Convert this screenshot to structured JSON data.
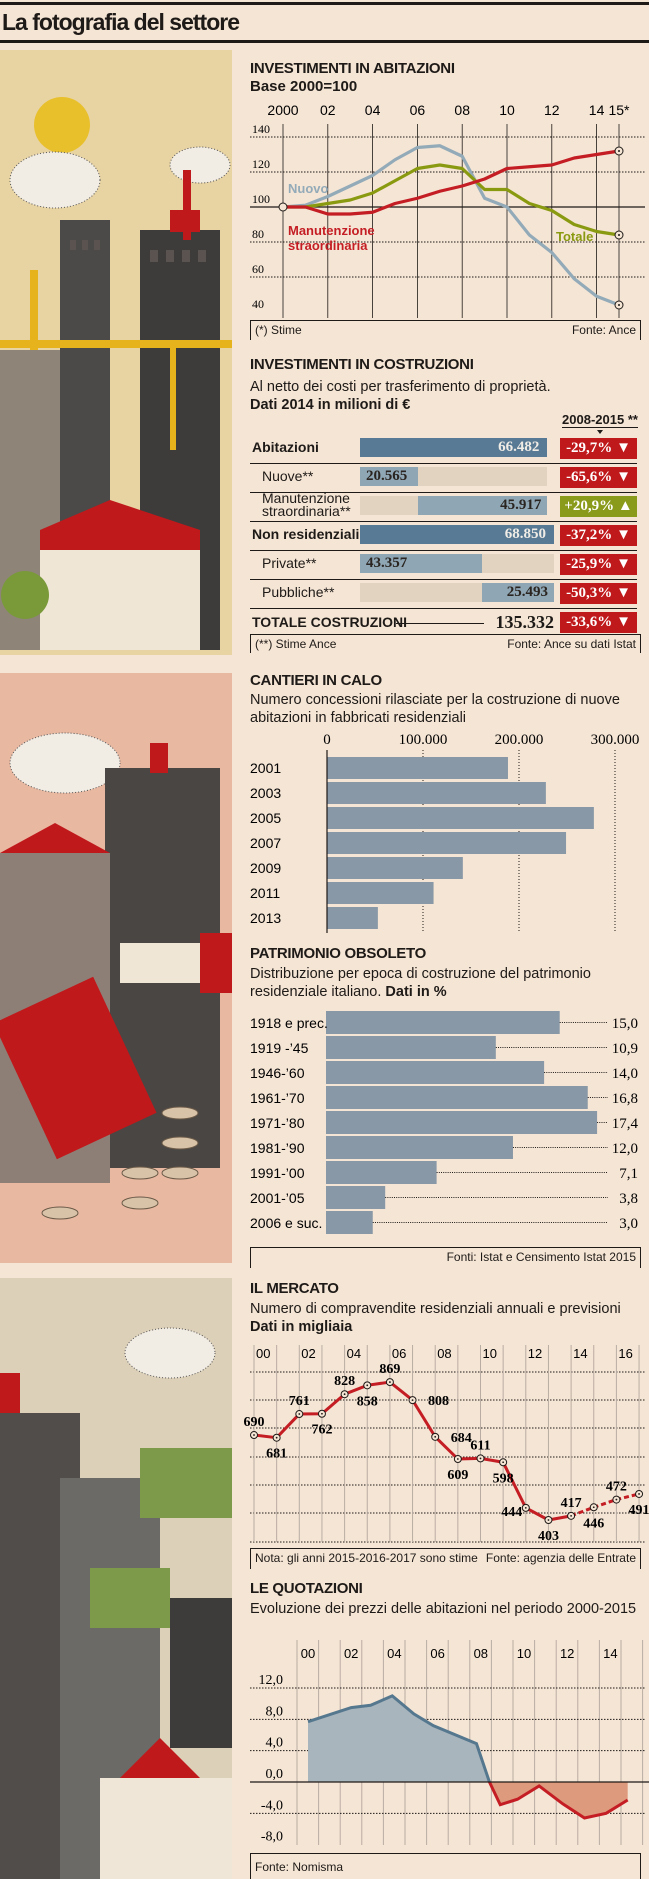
{
  "header": {
    "title": "La fotografia del settore"
  },
  "colors": {
    "background": "#f5e5d5",
    "red": "#c0191b",
    "olive": "#8a9a1a",
    "dark_blue": "#587a94",
    "light_blue": "#8fa6b5",
    "track": "#e2d2c0",
    "gray_bar": "#8898a6"
  },
  "investimenti_abitazioni": {
    "title": "INVESTIMENTI IN ABITAZIONI",
    "subtitle": "Base 2000=100",
    "note": "(*) Stime",
    "source": "Fonte: Ance"
  },
  "investimenti_costruzioni": {
    "title": "INVESTIMENTI IN COSTRUZIONI",
    "subtitle": "Al netto dei costi per trasferimento di proprietà.",
    "subtitle_bold": "Dati 2014 in milioni di €",
    "change_header": "2008-2015 **",
    "rows": [
      {
        "label": "Abitazioni",
        "value_label": "66.482",
        "value": 66482,
        "change": "-29,7%",
        "direction": "down",
        "bold": true
      },
      {
        "label": "Nuove**",
        "value_label": "20.565",
        "value": 20565,
        "change": "-65,6%",
        "direction": "down",
        "bold": false
      },
      {
        "label": "Manutenzione straordinaria**",
        "value_label": "45.917",
        "value": 45917,
        "change": "+20,9%",
        "direction": "up",
        "bold": false
      },
      {
        "label": "Non residenziali",
        "value_label": "68.850",
        "value": 68850,
        "change": "-37,2%",
        "direction": "down",
        "bold": true
      },
      {
        "label": "Private**",
        "value_label": "43.357",
        "value": 43357,
        "change": "-25,9%",
        "direction": "down",
        "bold": false
      },
      {
        "label": "Pubbliche**",
        "value_label": "25.493",
        "value": 25493,
        "change": "-50,3%",
        "direction": "down",
        "bold": false
      }
    ],
    "total": {
      "label": "TOTALE COSTRUZIONI",
      "value_label": "135.332",
      "change": "-33,6%",
      "direction": "down"
    },
    "note": "(**) Stime Ance",
    "source": "Fonte: Ance su dati Istat"
  },
  "cantieri": {
    "title": "CANTIERI IN CALO",
    "subtitle": "Numero concessioni rilasciate per la costruzione di nuove abitazioni in fabbricati residenziali"
  },
  "patrimonio": {
    "title": "PATRIMONIO OBSOLETO",
    "subtitle": "Distribuzione per epoca di costruzione del patrimonio residenziale italiano.",
    "subtitle_bold": "Dati in %",
    "source": "Fonti: Istat e Censimento Istat 2015"
  },
  "mercato": {
    "title": "IL MERCATO",
    "subtitle": "Numero di compravendite residenziali annuali e previsioni",
    "subtitle_bold": "Dati in migliaia",
    "note": "Nota: gli anni 2015-2016-2017 sono stime",
    "source": "Fonte: agenzia delle Entrate"
  },
  "quotazioni": {
    "title": "LE QUOTAZIONI",
    "subtitle": "Evoluzione dei prezzi delle abitazioni nel periodo 2000-2015",
    "source": "Fonte: Nomisma"
  },
  "chart_data": [
    {
      "type": "line",
      "title": "INVESTIMENTI IN ABITAZIONI",
      "x": [
        2000,
        2001,
        2002,
        2003,
        2004,
        2005,
        2006,
        2007,
        2008,
        2009,
        2010,
        2011,
        2012,
        2013,
        2014,
        2015
      ],
      "x_tick_labels": [
        "2000",
        "02",
        "04",
        "06",
        "08",
        "10",
        "12",
        "14",
        "15*"
      ],
      "y_ticks": [
        "140",
        "120",
        "100",
        "80",
        "60",
        "40"
      ],
      "ylim": [
        40,
        140
      ],
      "series": [
        {
          "name": "Nuovo",
          "color": "#93aab8",
          "values": [
            100,
            101,
            106,
            112,
            118,
            127,
            134,
            135,
            129,
            105,
            100,
            84,
            74,
            59,
            49,
            44
          ]
        },
        {
          "name": "Totale",
          "color": "#8a9a10",
          "values": [
            100,
            100,
            102,
            104,
            108,
            115,
            122,
            124,
            122,
            110,
            110,
            102,
            98,
            90,
            86,
            84
          ]
        },
        {
          "name": "Manutenzione straordinaria",
          "label_lines": [
            "Manutenzione",
            "straordinaria"
          ],
          "color": "#c41e24",
          "values": [
            100,
            100,
            96,
            96,
            97,
            102,
            105,
            109,
            112,
            116,
            122,
            123,
            124,
            128,
            130,
            132
          ]
        }
      ]
    },
    {
      "type": "bar",
      "title": "CANTIERI IN CALO",
      "categories": [
        "2001",
        "2003",
        "2005",
        "2007",
        "2009",
        "2011",
        "2013"
      ],
      "values": [
        188500,
        228000,
        278000,
        249000,
        141500,
        111000,
        53000
      ],
      "x_tick_labels": [
        "0",
        "100.000",
        "200.000",
        "300.000"
      ],
      "xlim": [
        0,
        300000
      ]
    },
    {
      "type": "bar",
      "title": "PATRIMONIO OBSOLETO",
      "categories": [
        "1918 e prec.",
        "1919 -’45",
        "1946-’60",
        "1961-’70",
        "1971-’80",
        "1981-’90",
        "1991-’00",
        "2001-’05",
        "2006 e suc."
      ],
      "values": [
        15.0,
        10.9,
        14.0,
        16.8,
        17.4,
        12.0,
        7.1,
        3.8,
        3.0
      ],
      "value_labels": [
        "15,0",
        "10,9",
        "14,0",
        "16,8",
        "17,4",
        "12,0",
        "7,1",
        "3,8",
        "3,0"
      ]
    },
    {
      "type": "line",
      "title": "IL MERCATO",
      "x": [
        2000,
        2001,
        2002,
        2003,
        2004,
        2005,
        2006,
        2007,
        2008,
        2009,
        2010,
        2011,
        2012,
        2013,
        2014,
        2015,
        2016,
        2017
      ],
      "values": [
        690,
        681,
        761,
        762,
        828,
        858,
        869,
        808,
        684,
        609,
        611,
        598,
        444,
        403,
        417,
        446,
        472,
        491
      ],
      "estimated_from": 2015,
      "x_tick_labels": [
        "00",
        "02",
        "04",
        "06",
        "08",
        "10",
        "12",
        "14",
        "16"
      ]
    },
    {
      "type": "area",
      "title": "LE QUOTAZIONI",
      "x": [
        2000,
        2002,
        2002.9,
        2003.9,
        2004.9,
        2005.8,
        2007.8,
        2008.4,
        2008.9,
        2009.7,
        2010.7,
        2011.8,
        2012.8,
        2013.8,
        2014.8
      ],
      "values": [
        7.7,
        9.5,
        9.8,
        11.0,
        8.7,
        7.2,
        4.9,
        0.0,
        -2.9,
        -2.2,
        -0.5,
        -2.8,
        -4.6,
        -4.0,
        -2.3
      ],
      "x_tick_labels": [
        "00",
        "02",
        "04",
        "06",
        "08",
        "10",
        "12",
        "14"
      ],
      "y_ticks": [
        "12,0",
        "8,0",
        "4,0",
        "0,0",
        "-4,0",
        "-8,0"
      ],
      "ylim": [
        -8,
        12
      ]
    }
  ]
}
